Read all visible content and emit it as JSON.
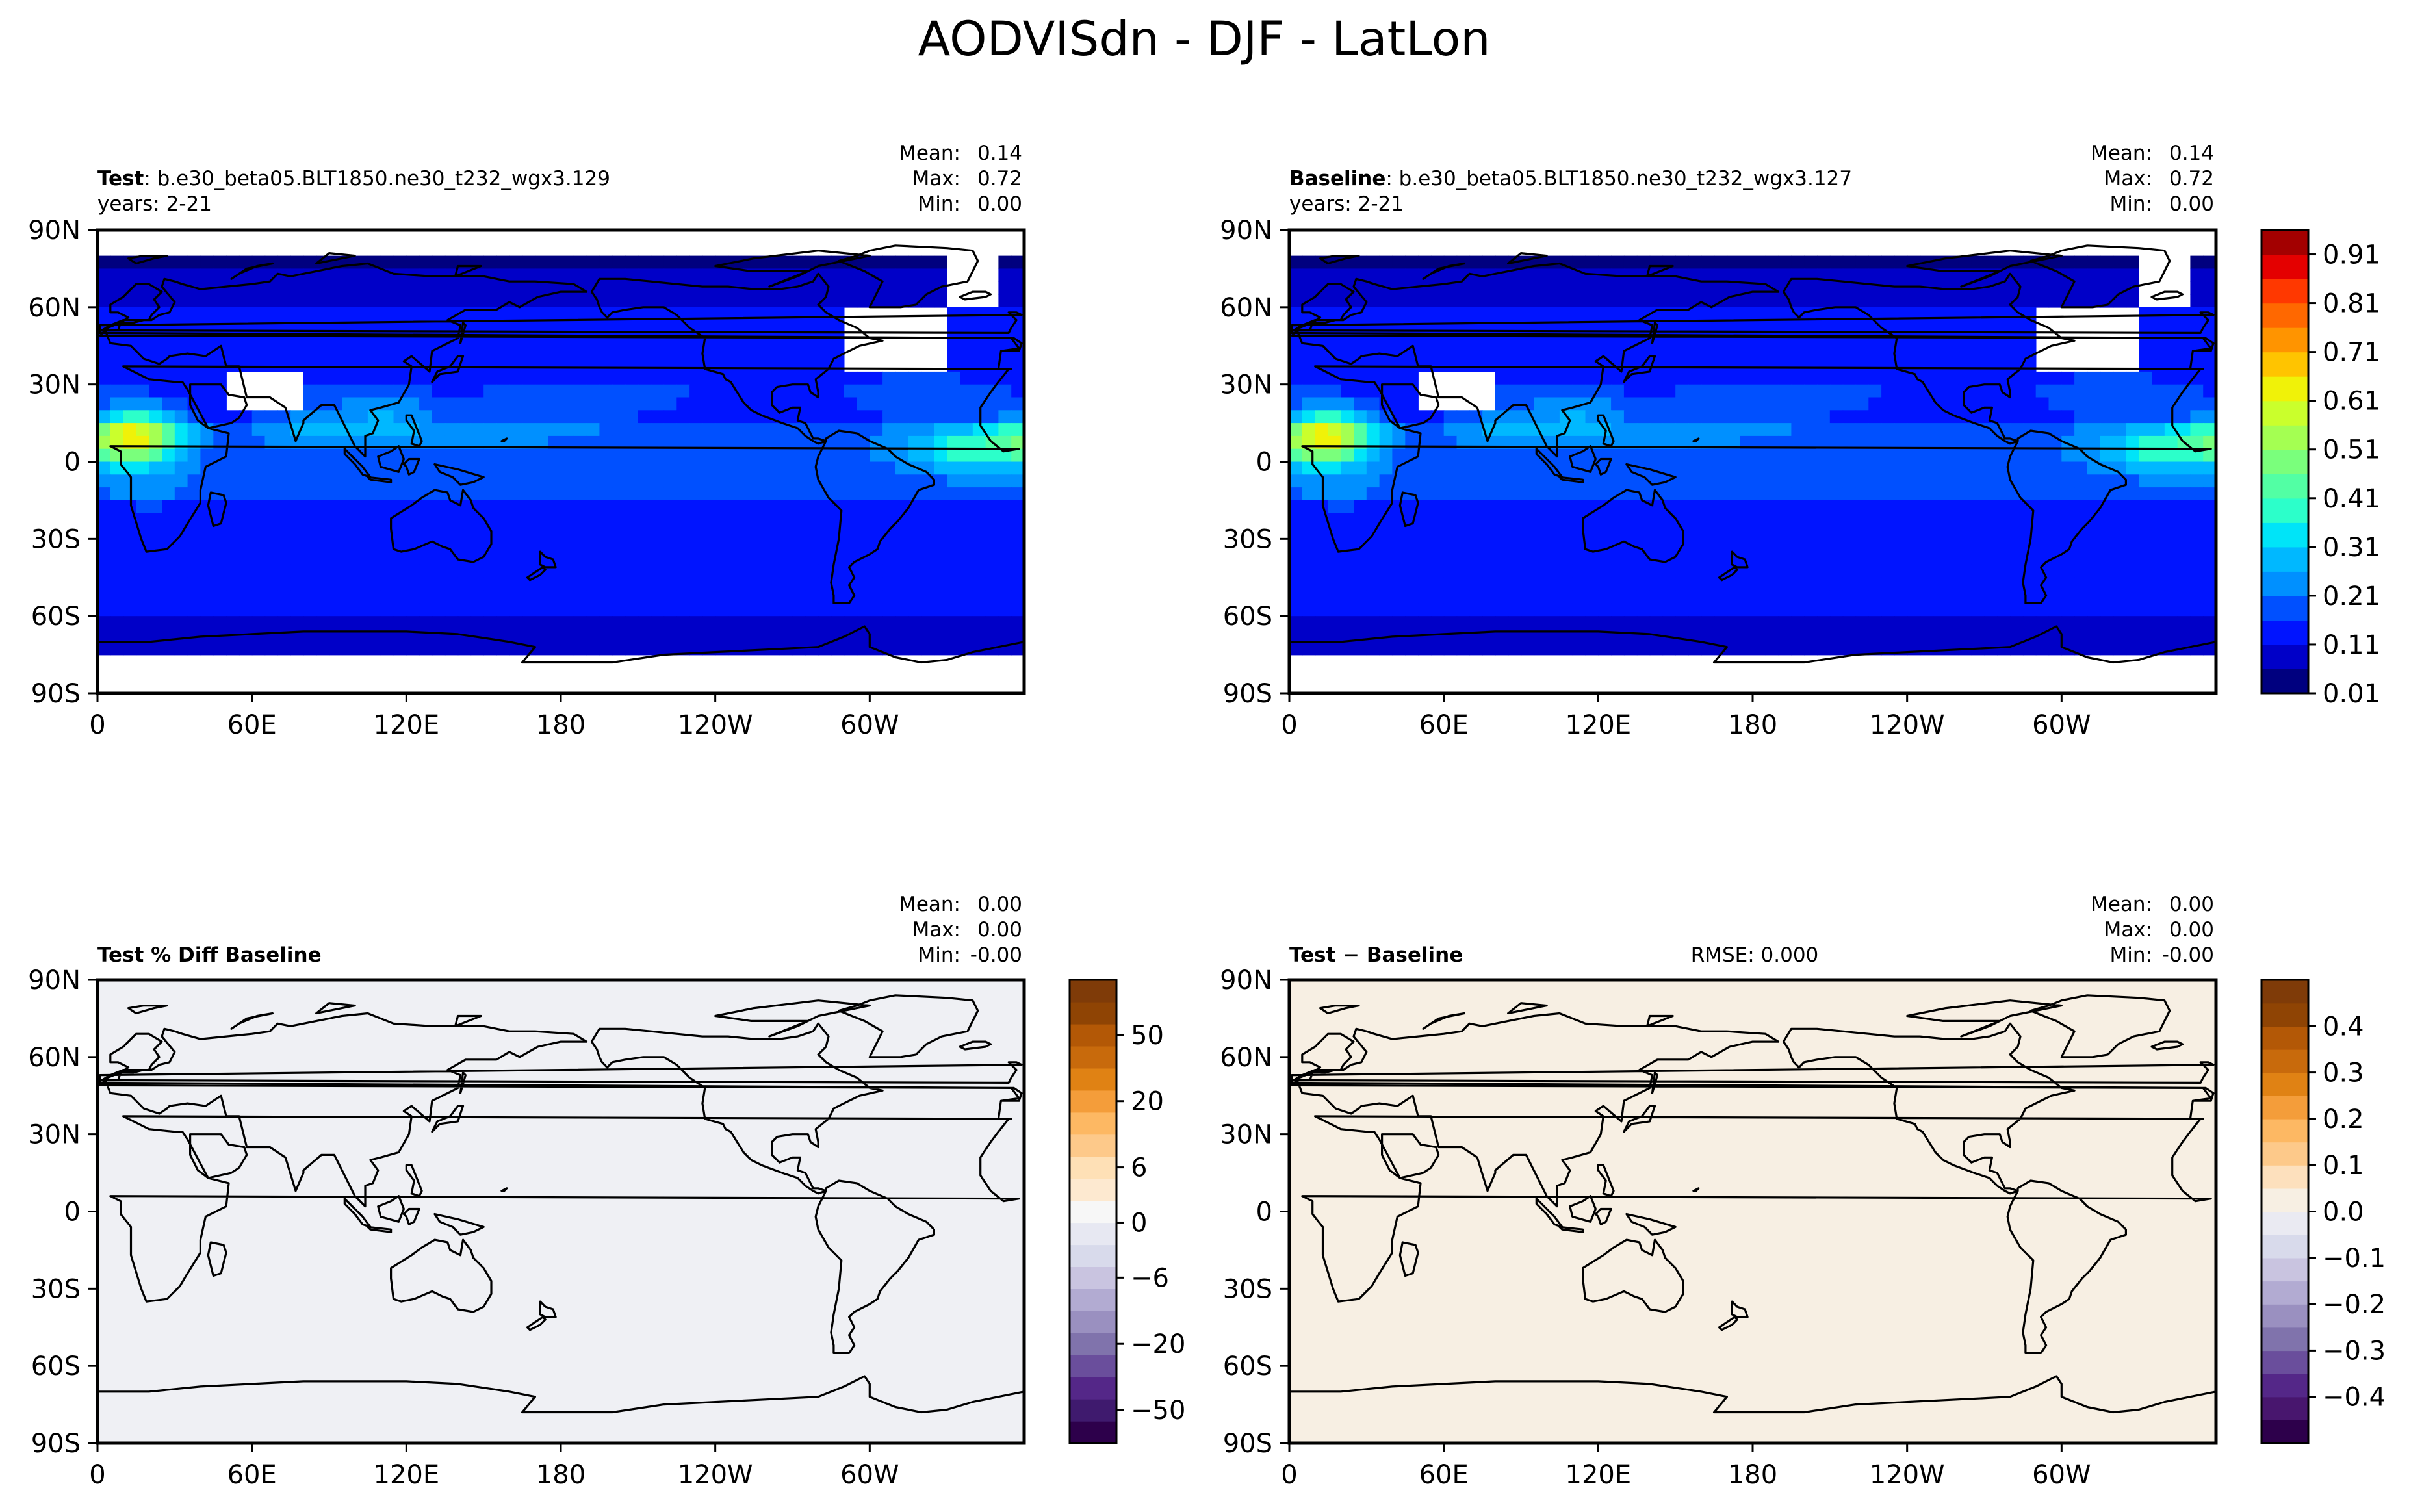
{
  "page_title": "AODVISdn - DJF - LatLon",
  "chart_data": [
    {
      "type": "heatmap",
      "panel": "test",
      "title_bold": "Test",
      "title_rest": ": b.e30_beta05.BLT1850.ne30_t232_wgx3.129",
      "subtitle": "years: 2-21",
      "stats": {
        "mean": "0.14",
        "max": "0.72",
        "min": "0.00"
      },
      "stats_labels": {
        "mean": "Mean:",
        "max": "Max:",
        "min": "Min:"
      },
      "xlabel": "",
      "ylabel": "",
      "xticks": [
        "0",
        "60E",
        "120E",
        "180",
        "120W",
        "60W"
      ],
      "yticks": [
        "90N",
        "60N",
        "30N",
        "0",
        "30S",
        "60S",
        "90S"
      ],
      "xlim": [
        0,
        360
      ],
      "ylim": [
        -90,
        90
      ],
      "field": "aod",
      "colormap": "white-blue-green-yellow-red",
      "colorbar": "baseline"
    },
    {
      "type": "heatmap",
      "panel": "baseline",
      "title_bold": "Baseline",
      "title_rest": ": b.e30_beta05.BLT1850.ne30_t232_wgx3.127",
      "subtitle": "years: 2-21",
      "stats": {
        "mean": "0.14",
        "max": "0.72",
        "min": "0.00"
      },
      "stats_labels": {
        "mean": "Mean:",
        "max": "Max:",
        "min": "Min:"
      },
      "xlabel": "",
      "ylabel": "",
      "xticks": [
        "0",
        "60E",
        "120E",
        "180",
        "120W",
        "60W"
      ],
      "yticks": [
        "90N",
        "60N",
        "30N",
        "0",
        "30S",
        "60S",
        "90S"
      ],
      "xlim": [
        0,
        360
      ],
      "ylim": [
        -90,
        90
      ],
      "field": "aod",
      "colorbar": {
        "ticks": [
          "0.91",
          "0.81",
          "0.71",
          "0.61",
          "0.51",
          "0.41",
          "0.31",
          "0.21",
          "0.11",
          "0.01"
        ],
        "levels": [
          0.01,
          0.06,
          0.11,
          0.16,
          0.21,
          0.26,
          0.31,
          0.36,
          0.41,
          0.46,
          0.51,
          0.56,
          0.61,
          0.66,
          0.71,
          0.76,
          0.81,
          0.86,
          0.91,
          0.96
        ],
        "colors": [
          "#00007f",
          "#0000c8",
          "#0014ff",
          "#0050ff",
          "#0090ff",
          "#00b8ff",
          "#00e4f8",
          "#2cffca",
          "#52ffa4",
          "#7aff7c",
          "#a4ff52",
          "#caff2c",
          "#f0f208",
          "#ffc400",
          "#ff9400",
          "#ff6800",
          "#ff3800",
          "#e40000",
          "#a30000"
        ]
      }
    },
    {
      "type": "heatmap",
      "panel": "pct-diff",
      "title_bold": "Test % Diff Baseline",
      "title_rest": "",
      "stats": {
        "mean": "0.00",
        "max": "0.00",
        "min": "-0.00"
      },
      "stats_labels": {
        "mean": "Mean:",
        "max": "Max:",
        "min": "Min:"
      },
      "xlabel": "",
      "ylabel": "",
      "xticks": [
        "0",
        "60E",
        "120E",
        "180",
        "120W",
        "60W"
      ],
      "yticks": [
        "90N",
        "60N",
        "30N",
        "0",
        "30S",
        "60S",
        "90S"
      ],
      "xlim": [
        0,
        360
      ],
      "ylim": [
        -90,
        90
      ],
      "fill_color": "#eff0f4",
      "colorbar": {
        "ticks": [
          "50",
          "20",
          "6",
          "0",
          "−6",
          "−20",
          "−50"
        ],
        "colors": [
          "#2d004b",
          "#3f1a6e",
          "#542788",
          "#6a4e9c",
          "#8073ac",
          "#9a90c0",
          "#b2abd2",
          "#c9c4e0",
          "#d8daeb",
          "#e7e8f2",
          "#f7f7f7",
          "#fde9d0",
          "#fee0b6",
          "#fdc98a",
          "#fdb863",
          "#f49d3a",
          "#e08214",
          "#c86a0c",
          "#b35806",
          "#8f4404",
          "#7f3b08"
        ],
        "tick_index": [
          18.5,
          15.5,
          12.5,
          10,
          7.5,
          4.5,
          1.5
        ]
      }
    },
    {
      "type": "heatmap",
      "panel": "abs-diff",
      "title_bold": "Test − Baseline",
      "title_rest": "",
      "rmse": "RMSE: 0.000",
      "stats": {
        "mean": "0.00",
        "max": "0.00",
        "min": "-0.00"
      },
      "stats_labels": {
        "mean": "Mean:",
        "max": "Max:",
        "min": "Min:"
      },
      "xlabel": "",
      "ylabel": "",
      "xticks": [
        "0",
        "60E",
        "120E",
        "180",
        "120W",
        "60W"
      ],
      "yticks": [
        "90N",
        "60N",
        "30N",
        "0",
        "30S",
        "60S",
        "90S"
      ],
      "xlim": [
        0,
        360
      ],
      "ylim": [
        -90,
        90
      ],
      "fill_color": "#f7efe3",
      "colorbar": {
        "ticks": [
          "0.4",
          "0.3",
          "0.2",
          "0.1",
          "0.0",
          "−0.1",
          "−0.2",
          "−0.3",
          "−0.4"
        ],
        "colors": [
          "#2d004b",
          "#48166e",
          "#542788",
          "#6a4e9c",
          "#8073ac",
          "#9a90c0",
          "#b2abd2",
          "#c9c4e0",
          "#d8daeb",
          "#eaeaf2",
          "#f7efe3",
          "#fde0bd",
          "#fdc98a",
          "#fdb863",
          "#f49d3a",
          "#e08214",
          "#c86a0c",
          "#b35806",
          "#8f4404",
          "#7f3b08"
        ],
        "tick_index": [
          18,
          16,
          14,
          12,
          10,
          8,
          6,
          4,
          2
        ]
      }
    }
  ]
}
